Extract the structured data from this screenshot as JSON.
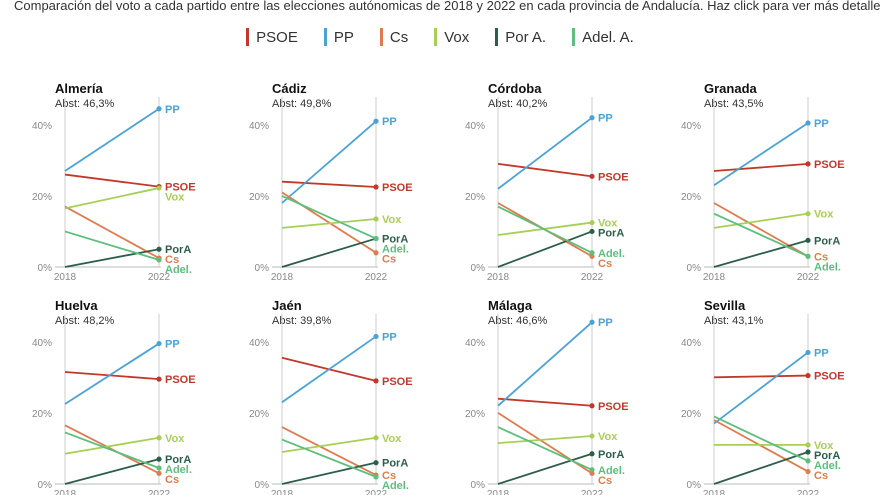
{
  "header": {
    "subtitle": "Comparación del voto a cada partido entre las elecciones autónomicas de 2018 y 2022 en cada provincia de Andalucía. Haz click para ver más detalle"
  },
  "legend": [
    {
      "name": "PSOE",
      "color": "#c0392b"
    },
    {
      "name": "PP",
      "color": "#4aa3d6"
    },
    {
      "name": "Cs",
      "color": "#e07b4f"
    },
    {
      "name": "Vox",
      "color": "#a8cf55"
    },
    {
      "name": "Por A.",
      "color": "#2c5e4a"
    },
    {
      "name": "Adel. A.",
      "color": "#5cbf7c"
    }
  ],
  "chart_data": {
    "type": "line",
    "x": [
      "2018",
      "2022"
    ],
    "ylim": [
      0,
      45
    ],
    "yticks": [
      "0%",
      "20%",
      "40%"
    ],
    "panels": [
      {
        "title": "Almería",
        "abst": "Abst: 46,3%",
        "series": [
          {
            "name": "PSOE",
            "label": "PSOE",
            "values": [
              26,
              22.6
            ]
          },
          {
            "name": "PP",
            "label": "PP",
            "values": [
              27,
              44.5
            ]
          },
          {
            "name": "Cs",
            "label": "Cs",
            "values": [
              17,
              2.5
            ]
          },
          {
            "name": "Vox",
            "label": "Vox",
            "values": [
              16.5,
              22.2
            ]
          },
          {
            "name": "Por A.",
            "label": "PorA",
            "values": [
              0,
              5
            ]
          },
          {
            "name": "Adel. A.",
            "label": "Adel.",
            "values": [
              10,
              2
            ]
          }
        ]
      },
      {
        "title": "Cádiz",
        "abst": "Abst: 49,8%",
        "series": [
          {
            "name": "PSOE",
            "label": "PSOE",
            "values": [
              24,
              22.5
            ]
          },
          {
            "name": "PP",
            "label": "PP",
            "values": [
              18,
              41
            ]
          },
          {
            "name": "Cs",
            "label": "Cs",
            "values": [
              21,
              4
            ]
          },
          {
            "name": "Vox",
            "label": "Vox",
            "values": [
              11,
              13.5
            ]
          },
          {
            "name": "Por A.",
            "label": "PorA",
            "values": [
              0,
              8
            ]
          },
          {
            "name": "Adel. A.",
            "label": "Adel.",
            "values": [
              20,
              8
            ]
          }
        ]
      },
      {
        "title": "Córdoba",
        "abst": "Abst: 40,2%",
        "series": [
          {
            "name": "PSOE",
            "label": "PSOE",
            "values": [
              29,
              25.5
            ]
          },
          {
            "name": "PP",
            "label": "PP",
            "values": [
              22,
              42
            ]
          },
          {
            "name": "Cs",
            "label": "Cs",
            "values": [
              18,
              3
            ]
          },
          {
            "name": "Vox",
            "label": "Vox",
            "values": [
              9,
              12.5
            ]
          },
          {
            "name": "Por A.",
            "label": "PorA",
            "values": [
              0,
              10
            ]
          },
          {
            "name": "Adel. A.",
            "label": "Adel.",
            "values": [
              17,
              4
            ]
          }
        ]
      },
      {
        "title": "Granada",
        "abst": "Abst: 43,5%",
        "series": [
          {
            "name": "PSOE",
            "label": "PSOE",
            "values": [
              27,
              29
            ]
          },
          {
            "name": "PP",
            "label": "PP",
            "values": [
              23,
              40.5
            ]
          },
          {
            "name": "Cs",
            "label": "Cs",
            "values": [
              18,
              3
            ]
          },
          {
            "name": "Vox",
            "label": "Vox",
            "values": [
              11,
              15
            ]
          },
          {
            "name": "Por A.",
            "label": "PorA",
            "values": [
              0,
              7.5
            ]
          },
          {
            "name": "Adel. A.",
            "label": "Adel.",
            "values": [
              15,
              3
            ]
          }
        ]
      },
      {
        "title": "Huelva",
        "abst": "Abst: 48,2%",
        "series": [
          {
            "name": "PSOE",
            "label": "PSOE",
            "values": [
              31.5,
              29.5
            ]
          },
          {
            "name": "PP",
            "label": "PP",
            "values": [
              22.5,
              39.5
            ]
          },
          {
            "name": "Cs",
            "label": "Cs",
            "values": [
              16.5,
              3
            ]
          },
          {
            "name": "Vox",
            "label": "Vox",
            "values": [
              8.5,
              13
            ]
          },
          {
            "name": "Por A.",
            "label": "PorA",
            "values": [
              0,
              7
            ]
          },
          {
            "name": "Adel. A.",
            "label": "Adel.",
            "values": [
              14.5,
              4.5
            ]
          }
        ]
      },
      {
        "title": "Jaén",
        "abst": "Abst: 39,8%",
        "series": [
          {
            "name": "PSOE",
            "label": "PSOE",
            "values": [
              35.5,
              29
            ]
          },
          {
            "name": "PP",
            "label": "PP",
            "values": [
              23,
              41.5
            ]
          },
          {
            "name": "Cs",
            "label": "Cs",
            "values": [
              16,
              2.5
            ]
          },
          {
            "name": "Vox",
            "label": "Vox",
            "values": [
              9,
              13
            ]
          },
          {
            "name": "Por A.",
            "label": "PorA",
            "values": [
              0,
              6
            ]
          },
          {
            "name": "Adel. A.",
            "label": "Adel.",
            "values": [
              12.5,
              2
            ]
          }
        ]
      },
      {
        "title": "Málaga",
        "abst": "Abst: 46,6%",
        "series": [
          {
            "name": "PSOE",
            "label": "PSOE",
            "values": [
              24,
              22
            ]
          },
          {
            "name": "PP",
            "label": "PP",
            "values": [
              22,
              45.5
            ]
          },
          {
            "name": "Cs",
            "label": "Cs",
            "values": [
              20,
              3
            ]
          },
          {
            "name": "Vox",
            "label": "Vox",
            "values": [
              11.5,
              13.5
            ]
          },
          {
            "name": "Por A.",
            "label": "PorA",
            "values": [
              0,
              8.5
            ]
          },
          {
            "name": "Adel. A.",
            "label": "Adel.",
            "values": [
              16,
              4
            ]
          }
        ]
      },
      {
        "title": "Sevilla",
        "abst": "Abst: 43,1%",
        "series": [
          {
            "name": "PSOE",
            "label": "PSOE",
            "values": [
              30,
              30.5
            ]
          },
          {
            "name": "PP",
            "label": "PP",
            "values": [
              17,
              37
            ]
          },
          {
            "name": "Cs",
            "label": "Cs",
            "values": [
              18,
              3.5
            ]
          },
          {
            "name": "Vox",
            "label": "Vox",
            "values": [
              11,
              11
            ]
          },
          {
            "name": "Por A.",
            "label": "PorA",
            "values": [
              0,
              9
            ]
          },
          {
            "name": "Adel. A.",
            "label": "Adel.",
            "values": [
              19,
              6.5
            ]
          }
        ]
      }
    ]
  }
}
